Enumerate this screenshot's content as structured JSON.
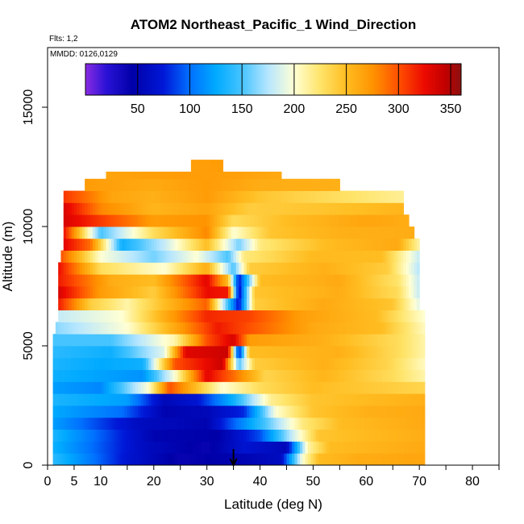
{
  "chart_data": {
    "type": "heatmap",
    "title": "ATOM2 Northeast_Pacific_1 Wind_Direction",
    "flights_label": "Flts: 1,2",
    "dates_label": "MMDD: 0126,0129",
    "xlabel": "Latitude (deg N)",
    "ylabel": "Altitude (m)",
    "xlim": [
      0,
      85
    ],
    "ylim": [
      0,
      17500
    ],
    "x_ticks": [
      0,
      5,
      10,
      20,
      30,
      40,
      50,
      60,
      70,
      80
    ],
    "x_minor_ticks": [
      15,
      25,
      35,
      45,
      55,
      65,
      75,
      85
    ],
    "y_ticks": [
      0,
      5000,
      10000,
      15000
    ],
    "colorbar": {
      "range": [
        0,
        360
      ],
      "ticks": [
        50,
        100,
        150,
        200,
        250,
        300,
        350
      ],
      "stops": [
        {
          "v": 0,
          "c": "#8a2be2"
        },
        {
          "v": 20,
          "c": "#2a12d6"
        },
        {
          "v": 45,
          "c": "#0000a8"
        },
        {
          "v": 75,
          "c": "#0018d8"
        },
        {
          "v": 100,
          "c": "#0070ff"
        },
        {
          "v": 125,
          "c": "#00aaff"
        },
        {
          "v": 150,
          "c": "#46c4ff"
        },
        {
          "v": 175,
          "c": "#b6e6ff"
        },
        {
          "v": 200,
          "c": "#ffffd4"
        },
        {
          "v": 225,
          "c": "#ffe46a"
        },
        {
          "v": 250,
          "c": "#ffbd21"
        },
        {
          "v": 275,
          "c": "#ff9400"
        },
        {
          "v": 300,
          "c": "#ff5000"
        },
        {
          "v": 325,
          "c": "#ec0a00"
        },
        {
          "v": 345,
          "c": "#c00000"
        },
        {
          "v": 360,
          "c": "#8c1010"
        }
      ]
    },
    "marker_latitude": 35,
    "layers": [
      {
        "alt": [
          0,
          500
        ],
        "lat": [
          1,
          71
        ],
        "points": [
          [
            1,
            140
          ],
          [
            15,
            70
          ],
          [
            25,
            40
          ],
          [
            36,
            50
          ],
          [
            44,
            60
          ],
          [
            48,
            200
          ],
          [
            51,
            250
          ],
          [
            58,
            260
          ],
          [
            71,
            265
          ]
        ]
      },
      {
        "alt": [
          500,
          1000
        ],
        "lat": [
          1,
          71
        ],
        "points": [
          [
            1,
            130
          ],
          [
            18,
            60
          ],
          [
            30,
            40
          ],
          [
            37,
            70
          ],
          [
            45,
            55
          ],
          [
            49,
            210
          ],
          [
            53,
            250
          ],
          [
            71,
            262
          ]
        ]
      },
      {
        "alt": [
          1000,
          1500
        ],
        "lat": [
          1,
          71
        ],
        "points": [
          [
            1,
            135
          ],
          [
            20,
            50
          ],
          [
            32,
            45
          ],
          [
            40,
            90
          ],
          [
            46,
            180
          ],
          [
            51,
            245
          ],
          [
            71,
            260
          ]
        ]
      },
      {
        "alt": [
          1500,
          2000
        ],
        "lat": [
          1,
          71
        ],
        "points": [
          [
            1,
            120
          ],
          [
            17,
            60
          ],
          [
            30,
            50
          ],
          [
            40,
            140
          ],
          [
            48,
            220
          ],
          [
            55,
            250
          ],
          [
            71,
            262
          ]
        ]
      },
      {
        "alt": [
          2000,
          2500
        ],
        "lat": [
          1,
          71
        ],
        "points": [
          [
            1,
            125
          ],
          [
            14,
            100
          ],
          [
            22,
            50
          ],
          [
            30,
            55
          ],
          [
            37,
            80
          ],
          [
            43,
            200
          ],
          [
            50,
            245
          ],
          [
            60,
            258
          ],
          [
            71,
            262
          ]
        ]
      },
      {
        "alt": [
          2500,
          3000
        ],
        "lat": [
          1,
          71
        ],
        "points": [
          [
            1,
            135
          ],
          [
            15,
            120
          ],
          [
            22,
            55
          ],
          [
            28,
            70
          ],
          [
            35,
            130
          ],
          [
            42,
            215
          ],
          [
            50,
            245
          ],
          [
            71,
            258
          ]
        ]
      },
      {
        "alt": [
          3000,
          3500
        ],
        "lat": [
          1,
          71
        ],
        "points": [
          [
            1,
            120
          ],
          [
            10,
            110
          ],
          [
            19,
            200
          ],
          [
            23,
            300
          ],
          [
            27,
            260
          ],
          [
            33,
            200
          ],
          [
            40,
            230
          ],
          [
            50,
            250
          ],
          [
            64,
            240
          ],
          [
            71,
            235
          ]
        ]
      },
      {
        "alt": [
          3500,
          4000
        ],
        "lat": [
          1,
          71
        ],
        "points": [
          [
            1,
            130
          ],
          [
            12,
            120
          ],
          [
            18,
            115
          ],
          [
            24,
            200
          ],
          [
            30,
            330
          ],
          [
            35,
            290
          ],
          [
            41,
            235
          ],
          [
            52,
            255
          ],
          [
            65,
            230
          ],
          [
            71,
            210
          ]
        ]
      },
      {
        "alt": [
          4000,
          4500
        ],
        "lat": [
          1,
          71
        ],
        "points": [
          [
            1,
            135
          ],
          [
            10,
            125
          ],
          [
            18,
            130
          ],
          [
            24,
            300
          ],
          [
            33,
            340
          ],
          [
            36,
            150
          ],
          [
            39,
            240
          ],
          [
            52,
            258
          ],
          [
            64,
            235
          ],
          [
            71,
            205
          ]
        ]
      },
      {
        "alt": [
          4500,
          5000
        ],
        "lat": [
          1,
          71
        ],
        "points": [
          [
            1,
            140
          ],
          [
            12,
            130
          ],
          [
            22,
            190
          ],
          [
            26,
            330
          ],
          [
            34,
            340
          ],
          [
            36,
            70
          ],
          [
            38,
            250
          ],
          [
            55,
            258
          ],
          [
            66,
            230
          ],
          [
            71,
            210
          ]
        ]
      },
      {
        "alt": [
          5000,
          5500
        ],
        "lat": [
          1,
          71
        ],
        "points": [
          [
            1,
            150
          ],
          [
            12,
            150
          ],
          [
            24,
            210
          ],
          [
            30,
            300
          ],
          [
            35,
            335
          ],
          [
            38,
            270
          ],
          [
            52,
            258
          ],
          [
            66,
            230
          ],
          [
            71,
            210
          ]
        ]
      },
      {
        "alt": [
          5500,
          6000
        ],
        "lat": [
          1.5,
          71
        ],
        "points": [
          [
            1.5,
            165
          ],
          [
            15,
            200
          ],
          [
            25,
            270
          ],
          [
            32,
            320
          ],
          [
            38,
            300
          ],
          [
            50,
            262
          ],
          [
            63,
            250
          ],
          [
            71,
            205
          ]
        ]
      },
      {
        "alt": [
          6000,
          6500
        ],
        "lat": [
          2,
          71
        ],
        "points": [
          [
            2,
            180
          ],
          [
            14,
            200
          ],
          [
            22,
            260
          ],
          [
            30,
            315
          ],
          [
            38,
            305
          ],
          [
            48,
            268
          ],
          [
            62,
            250
          ],
          [
            71,
            200
          ]
        ]
      },
      {
        "alt": [
          6500,
          7000
        ],
        "lat": [
          2,
          70
        ],
        "points": [
          [
            2,
            320
          ],
          [
            8,
            240
          ],
          [
            15,
            210
          ],
          [
            22,
            250
          ],
          [
            30,
            295
          ],
          [
            36,
            70
          ],
          [
            39,
            240
          ],
          [
            52,
            262
          ],
          [
            65,
            245
          ],
          [
            70,
            190
          ]
        ]
      },
      {
        "alt": [
          7000,
          7500
        ],
        "lat": [
          2,
          70
        ],
        "points": [
          [
            2,
            335
          ],
          [
            10,
            270
          ],
          [
            20,
            240
          ],
          [
            30,
            325
          ],
          [
            34,
            320
          ],
          [
            36,
            60
          ],
          [
            39,
            245
          ],
          [
            55,
            260
          ],
          [
            66,
            230
          ],
          [
            70,
            180
          ]
        ]
      },
      {
        "alt": [
          7500,
          8000
        ],
        "lat": [
          2,
          70
        ],
        "points": [
          [
            2,
            320
          ],
          [
            12,
            260
          ],
          [
            20,
            250
          ],
          [
            30,
            330
          ],
          [
            34,
            250
          ],
          [
            36,
            70
          ],
          [
            40,
            250
          ],
          [
            55,
            262
          ],
          [
            66,
            225
          ],
          [
            70,
            180
          ]
        ]
      },
      {
        "alt": [
          8000,
          8500
        ],
        "lat": [
          2,
          70
        ],
        "points": [
          [
            2,
            325
          ],
          [
            10,
            230
          ],
          [
            22,
            200
          ],
          [
            30,
            260
          ],
          [
            35,
            150
          ],
          [
            38,
            240
          ],
          [
            52,
            258
          ],
          [
            64,
            240
          ],
          [
            70,
            175
          ]
        ]
      },
      {
        "alt": [
          8500,
          9000
        ],
        "lat": [
          2.5,
          70
        ],
        "points": [
          [
            2.5,
            300
          ],
          [
            10,
            200
          ],
          [
            20,
            160
          ],
          [
            28,
            200
          ],
          [
            34,
            150
          ],
          [
            37,
            220
          ],
          [
            50,
            252
          ],
          [
            63,
            250
          ],
          [
            70,
            180
          ]
        ]
      },
      {
        "alt": [
          9000,
          9500
        ],
        "lat": [
          3,
          70
        ],
        "points": [
          [
            3,
            330
          ],
          [
            8,
            290
          ],
          [
            14,
            130
          ],
          [
            22,
            180
          ],
          [
            30,
            250
          ],
          [
            36,
            160
          ],
          [
            40,
            220
          ],
          [
            52,
            250
          ],
          [
            66,
            262
          ],
          [
            70,
            210
          ]
        ]
      },
      {
        "alt": [
          9500,
          10000
        ],
        "lat": [
          3,
          69
        ],
        "points": [
          [
            3,
            325
          ],
          [
            10,
            150
          ],
          [
            20,
            230
          ],
          [
            30,
            280
          ],
          [
            35,
            200
          ],
          [
            42,
            245
          ],
          [
            55,
            258
          ],
          [
            69,
            260
          ]
        ]
      },
      {
        "alt": [
          10000,
          10500
        ],
        "lat": [
          3,
          68
        ],
        "points": [
          [
            3,
            335
          ],
          [
            12,
            300
          ],
          [
            20,
            270
          ],
          [
            30,
            275
          ],
          [
            35,
            230
          ],
          [
            45,
            250
          ],
          [
            60,
            265
          ],
          [
            68,
            260
          ]
        ]
      },
      {
        "alt": [
          10500,
          11000
        ],
        "lat": [
          3,
          67
        ],
        "points": [
          [
            3,
            335
          ],
          [
            10,
            280
          ],
          [
            20,
            255
          ],
          [
            30,
            265
          ],
          [
            38,
            240
          ],
          [
            50,
            245
          ],
          [
            60,
            250
          ],
          [
            67,
            255
          ]
        ]
      },
      {
        "alt": [
          11000,
          11500
        ],
        "lat": [
          3,
          67
        ],
        "points": [
          [
            3,
            310
          ],
          [
            12,
            265
          ],
          [
            20,
            258
          ],
          [
            30,
            270
          ],
          [
            40,
            245
          ],
          [
            55,
            228
          ],
          [
            67,
            215
          ]
        ]
      },
      {
        "alt": [
          11500,
          12000
        ],
        "lat": [
          7,
          55
        ],
        "points": [
          [
            7,
            270
          ],
          [
            20,
            262
          ],
          [
            30,
            270
          ],
          [
            40,
            260
          ],
          [
            55,
            258
          ]
        ]
      },
      {
        "alt": [
          12000,
          12300
        ],
        "lat": [
          11,
          44
        ],
        "points": [
          [
            11,
            265
          ],
          [
            25,
            270
          ],
          [
            35,
            268
          ],
          [
            44,
            262
          ]
        ]
      },
      {
        "alt": [
          12300,
          12800
        ],
        "lat": [
          27,
          33
        ],
        "points": [
          [
            27,
            268
          ],
          [
            33,
            270
          ]
        ]
      }
    ]
  }
}
